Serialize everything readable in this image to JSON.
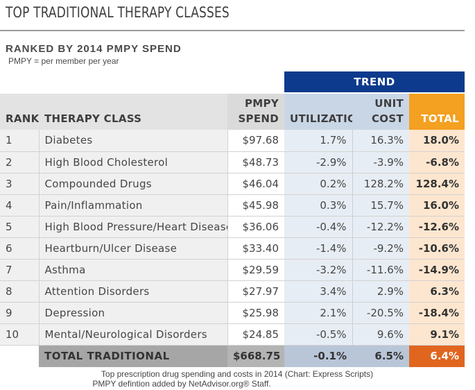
{
  "header": {
    "title": "TOP TRADITIONAL THERAPY CLASSES",
    "subtitle": "RANKED BY 2014 PMPY SPEND",
    "note": "PMPY = per member per year"
  },
  "trend_label": "TREND",
  "columns": {
    "rank": "RANK",
    "therapy_class": "THERAPY CLASS",
    "spend_line1": "PMPY",
    "spend_line2": "SPEND",
    "utilization": "UTILIZATION",
    "unit_cost_line1": "UNIT",
    "unit_cost_line2": "COST",
    "total": "TOTAL"
  },
  "rows": [
    {
      "rank": "1",
      "therapy_class": "Diabetes",
      "spend": "$97.68",
      "utilization": "1.7%",
      "unit_cost": "16.3%",
      "total": "18.0%"
    },
    {
      "rank": "2",
      "therapy_class": "High Blood Cholesterol",
      "spend": "$48.73",
      "utilization": "-2.9%",
      "unit_cost": "-3.9%",
      "total": "-6.8%"
    },
    {
      "rank": "3",
      "therapy_class": "Compounded Drugs",
      "spend": "$46.04",
      "utilization": "0.2%",
      "unit_cost": "128.2%",
      "total": "128.4%"
    },
    {
      "rank": "4",
      "therapy_class": "Pain/Inflammation",
      "spend": "$45.98",
      "utilization": "0.3%",
      "unit_cost": "15.7%",
      "total": "16.0%"
    },
    {
      "rank": "5",
      "therapy_class": "High Blood Pressure/Heart Disease",
      "spend": "$36.06",
      "utilization": "-0.4%",
      "unit_cost": "-12.2%",
      "total": "-12.6%"
    },
    {
      "rank": "6",
      "therapy_class": "Heartburn/Ulcer Disease",
      "spend": "$33.40",
      "utilization": "-1.4%",
      "unit_cost": "-9.2%",
      "total": "-10.6%"
    },
    {
      "rank": "7",
      "therapy_class": "Asthma",
      "spend": "$29.59",
      "utilization": "-3.2%",
      "unit_cost": "-11.6%",
      "total": "-14.9%"
    },
    {
      "rank": "8",
      "therapy_class": "Attention Disorders",
      "spend": "$27.97",
      "utilization": "3.4%",
      "unit_cost": "2.9%",
      "total": "6.3%"
    },
    {
      "rank": "9",
      "therapy_class": "Depression",
      "spend": "$25.98",
      "utilization": "2.1%",
      "unit_cost": "-20.5%",
      "total": "-18.4%"
    },
    {
      "rank": "10",
      "therapy_class": "Mental/Neurological Disorders",
      "spend": "$24.85",
      "utilization": "-0.5%",
      "unit_cost": "9.6%",
      "total": "9.1%"
    }
  ],
  "total_row": {
    "label": "TOTAL TRADITIONAL",
    "spend": "$668.75",
    "utilization": "-0.1%",
    "unit_cost": "6.5%",
    "total": "6.4%"
  },
  "footer": {
    "line1": "Top prescription drug spending and costs in 2014 (Chart: Express Scripts)",
    "line2": "PMPY defintion added by NetAdvisor.org® Staff."
  },
  "colors": {
    "trend_header": "#0d3a8c",
    "total_header": "#f4a020",
    "total_cell": "#fde6cf",
    "grand_total": "#e0661f",
    "trend_cell": "#e7edf4"
  }
}
